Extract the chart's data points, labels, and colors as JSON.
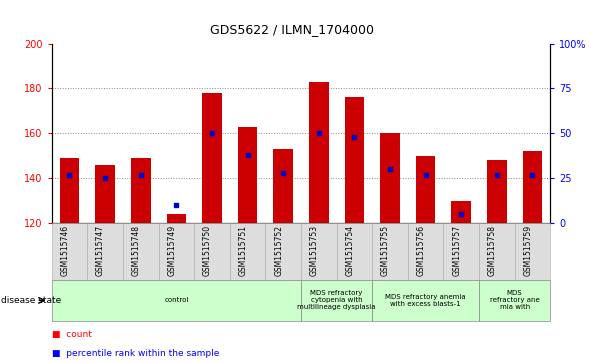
{
  "title": "GDS5622 / ILMN_1704000",
  "samples": [
    "GSM1515746",
    "GSM1515747",
    "GSM1515748",
    "GSM1515749",
    "GSM1515750",
    "GSM1515751",
    "GSM1515752",
    "GSM1515753",
    "GSM1515754",
    "GSM1515755",
    "GSM1515756",
    "GSM1515757",
    "GSM1515758",
    "GSM1515759"
  ],
  "counts": [
    149,
    146,
    149,
    124,
    178,
    163,
    153,
    183,
    176,
    160,
    150,
    130,
    148,
    152
  ],
  "percentile_ranks": [
    27,
    25,
    27,
    10,
    50,
    38,
    28,
    50,
    48,
    30,
    27,
    5,
    27,
    27
  ],
  "ymin": 120,
  "ymax": 200,
  "bar_color": "#cc0000",
  "dot_color": "#0000cc",
  "bg_color": "#ffffff",
  "grid_color": "#888888",
  "disease_states": [
    {
      "label": "control",
      "start": 0,
      "end": 7
    },
    {
      "label": "MDS refractory\ncytopenia with\nmultilineage dysplasia",
      "start": 7,
      "end": 9
    },
    {
      "label": "MDS refractory anemia\nwith excess blasts-1",
      "start": 9,
      "end": 12
    },
    {
      "label": "MDS\nrefractory ane\nmia with",
      "start": 12,
      "end": 14
    }
  ],
  "ds_color": "#ccffcc",
  "tick_bg_color": "#dddddd"
}
